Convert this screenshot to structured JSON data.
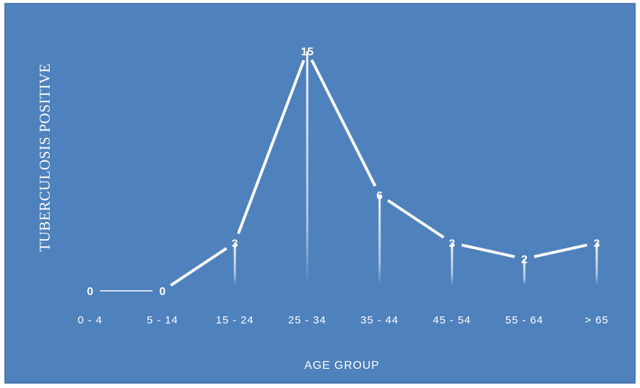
{
  "chart_data": {
    "type": "line",
    "categories": [
      "0 - 4",
      "5 - 14",
      "15 - 24",
      "25 - 34",
      "35 - 44",
      "45 - 54",
      "55 - 64",
      "> 65"
    ],
    "values": [
      0,
      0,
      3,
      15,
      6,
      3,
      2,
      3
    ],
    "xlabel": "AGE GROUP",
    "ylabel": "TUBERCULOSIS POSITIVE",
    "ylim": [
      0,
      15
    ],
    "grid": false,
    "legend": "none",
    "data_labels": true,
    "colors": {
      "background": "#4f81bd",
      "border": "#3a6aa5",
      "line": "#ffffff",
      "text": "#ffffff"
    }
  }
}
